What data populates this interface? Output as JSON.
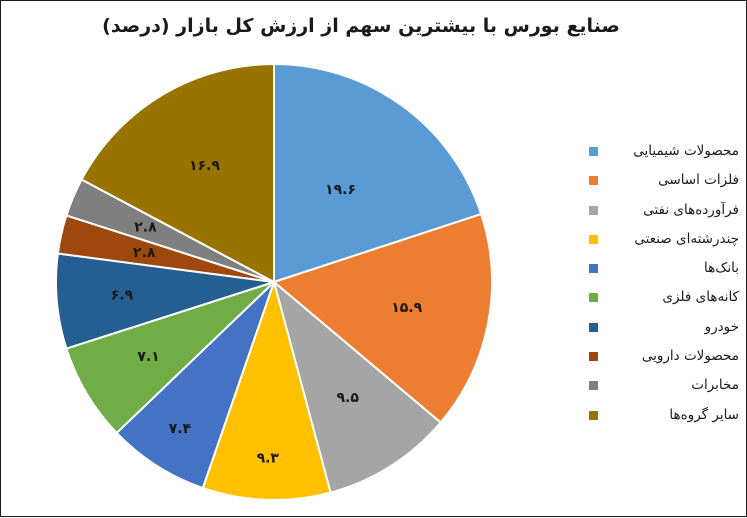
{
  "chart_data": {
    "type": "pie",
    "title": "صنایع بورس با بیشترین سهم از ارزش کل بازار (درصد)",
    "legend_position": "right",
    "slices": [
      {
        "label": "محصولات شیمیایی",
        "value": 19.6,
        "display": "۱۹.۶",
        "color": "#5b9bd5"
      },
      {
        "label": "فلزات اساسی",
        "value": 15.9,
        "display": "۱۵.۹",
        "color": "#ed7d31"
      },
      {
        "label": "فرآورده‌های نفتی",
        "value": 9.5,
        "display": "۹.۵",
        "color": "#a5a5a5"
      },
      {
        "label": "چندرشته‌ای صنعتی",
        "value": 9.3,
        "display": "۹.۳",
        "color": "#ffc000"
      },
      {
        "label": "بانک‌ها",
        "value": 7.4,
        "display": "۷.۴",
        "color": "#4472c4"
      },
      {
        "label": "کانه‌های فلزی",
        "value": 7.1,
        "display": "۷.۱",
        "color": "#70ad47"
      },
      {
        "label": "خودرو",
        "value": 6.9,
        "display": "۶.۹",
        "color": "#255e91"
      },
      {
        "label": "محصولات دارویی",
        "value": 2.8,
        "display": "۲.۸",
        "color": "#9e480e"
      },
      {
        "label": "مخابرات",
        "value": 2.8,
        "display": "۲.۸",
        "color": "#7f7f7f"
      },
      {
        "label": "سایر گروه‌ها",
        "value": 16.9,
        "display": "۱۶.۹",
        "color": "#997300"
      }
    ]
  }
}
